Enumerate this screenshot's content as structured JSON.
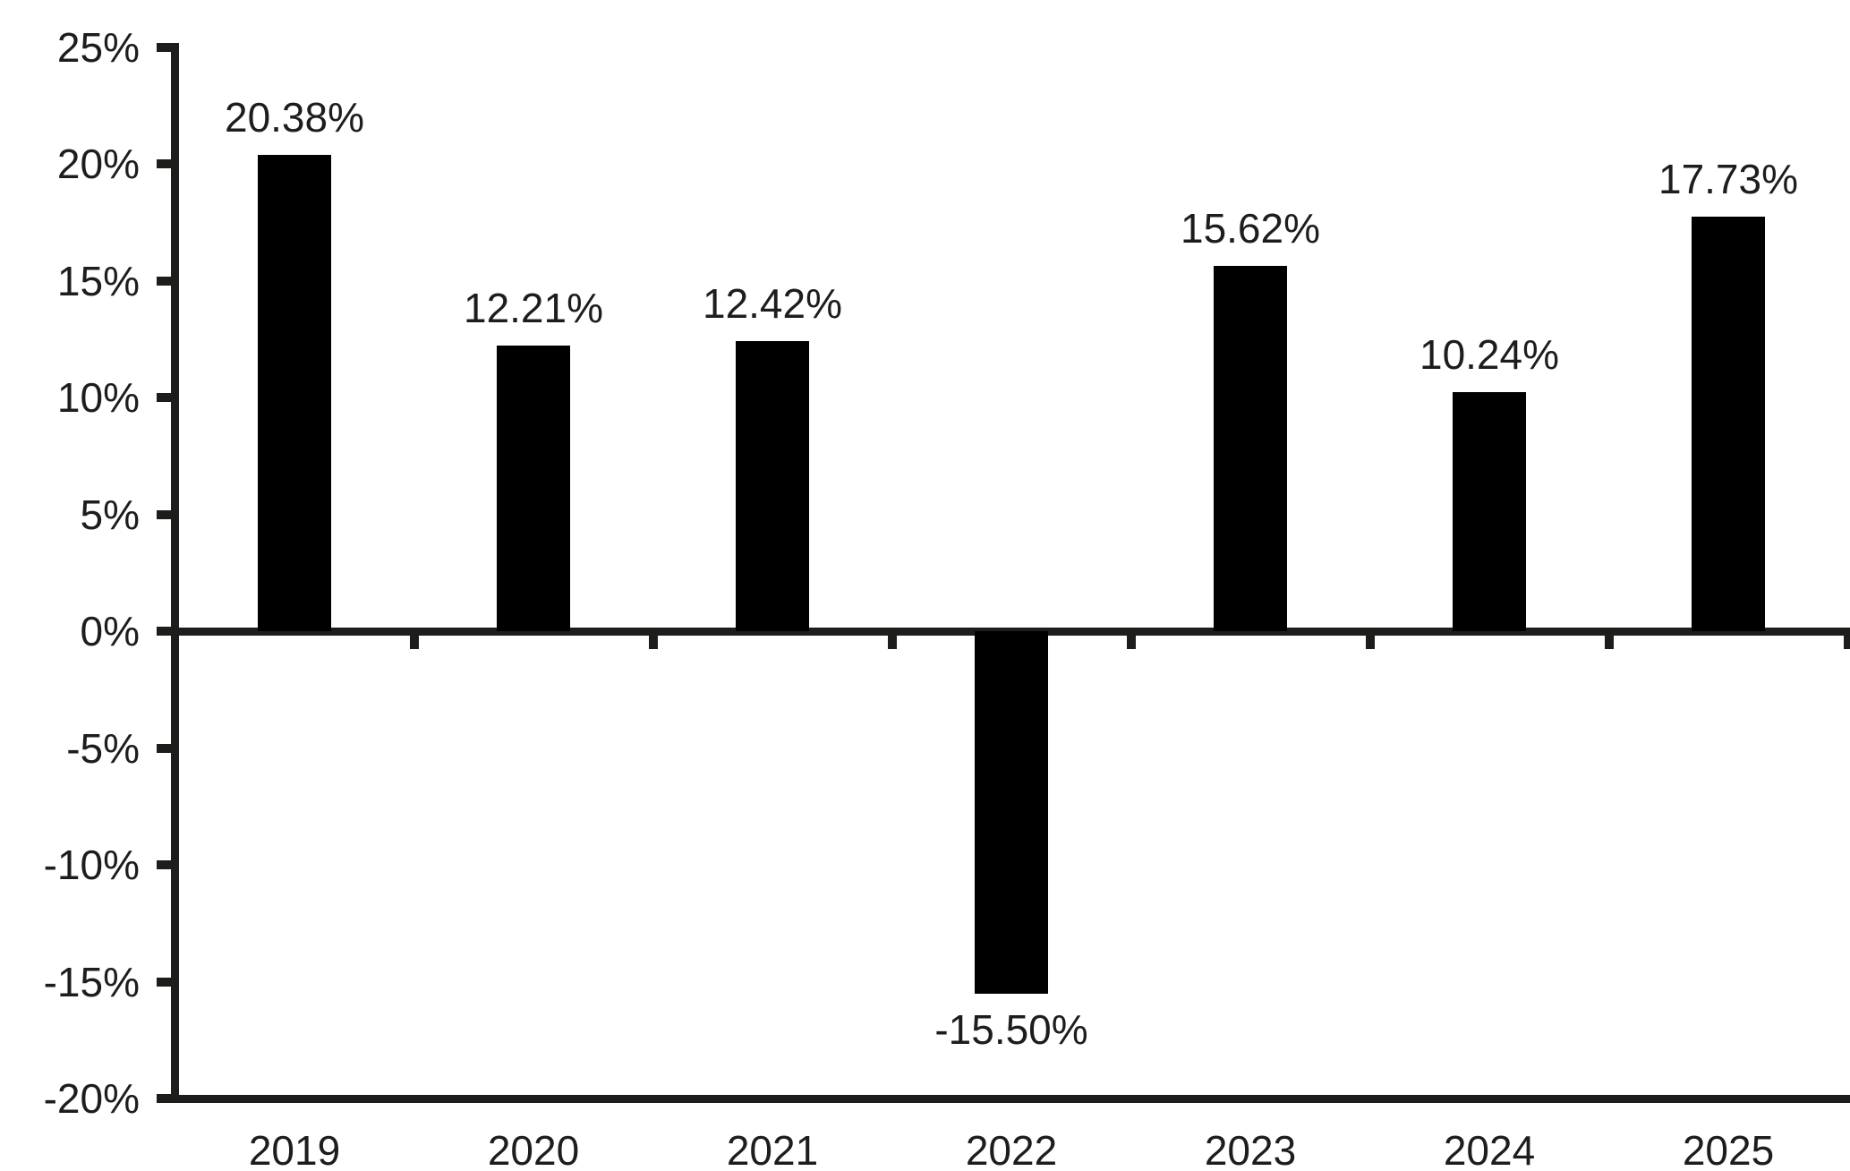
{
  "chart_data": {
    "type": "bar",
    "title": "",
    "categories": [
      "2019",
      "2020",
      "2021",
      "2022",
      "2023",
      "2024",
      "2025"
    ],
    "values": [
      20.38,
      12.21,
      12.42,
      -15.5,
      15.62,
      10.24,
      17.73
    ],
    "value_labels": [
      "20.38%",
      "12.21%",
      "12.42%",
      "-15.50%",
      "15.62%",
      "10.24%",
      "17.73%"
    ],
    "xlabel": "",
    "ylabel": "",
    "ylim": [
      -20,
      25
    ],
    "ytick_values": [
      25,
      20,
      15,
      10,
      5,
      0,
      -5,
      -10,
      -15,
      -20
    ],
    "ytick_labels": [
      "25%",
      "20%",
      "15%",
      "10%",
      "5%",
      "0%",
      "-5%",
      "-10%",
      "-15%",
      "-20%"
    ],
    "grid": false,
    "legend_position": "none",
    "bar_color": "#000000",
    "axis_color": "#1d1d1b",
    "text_color": "#1d1d1b",
    "background_color": "#ffffff"
  }
}
